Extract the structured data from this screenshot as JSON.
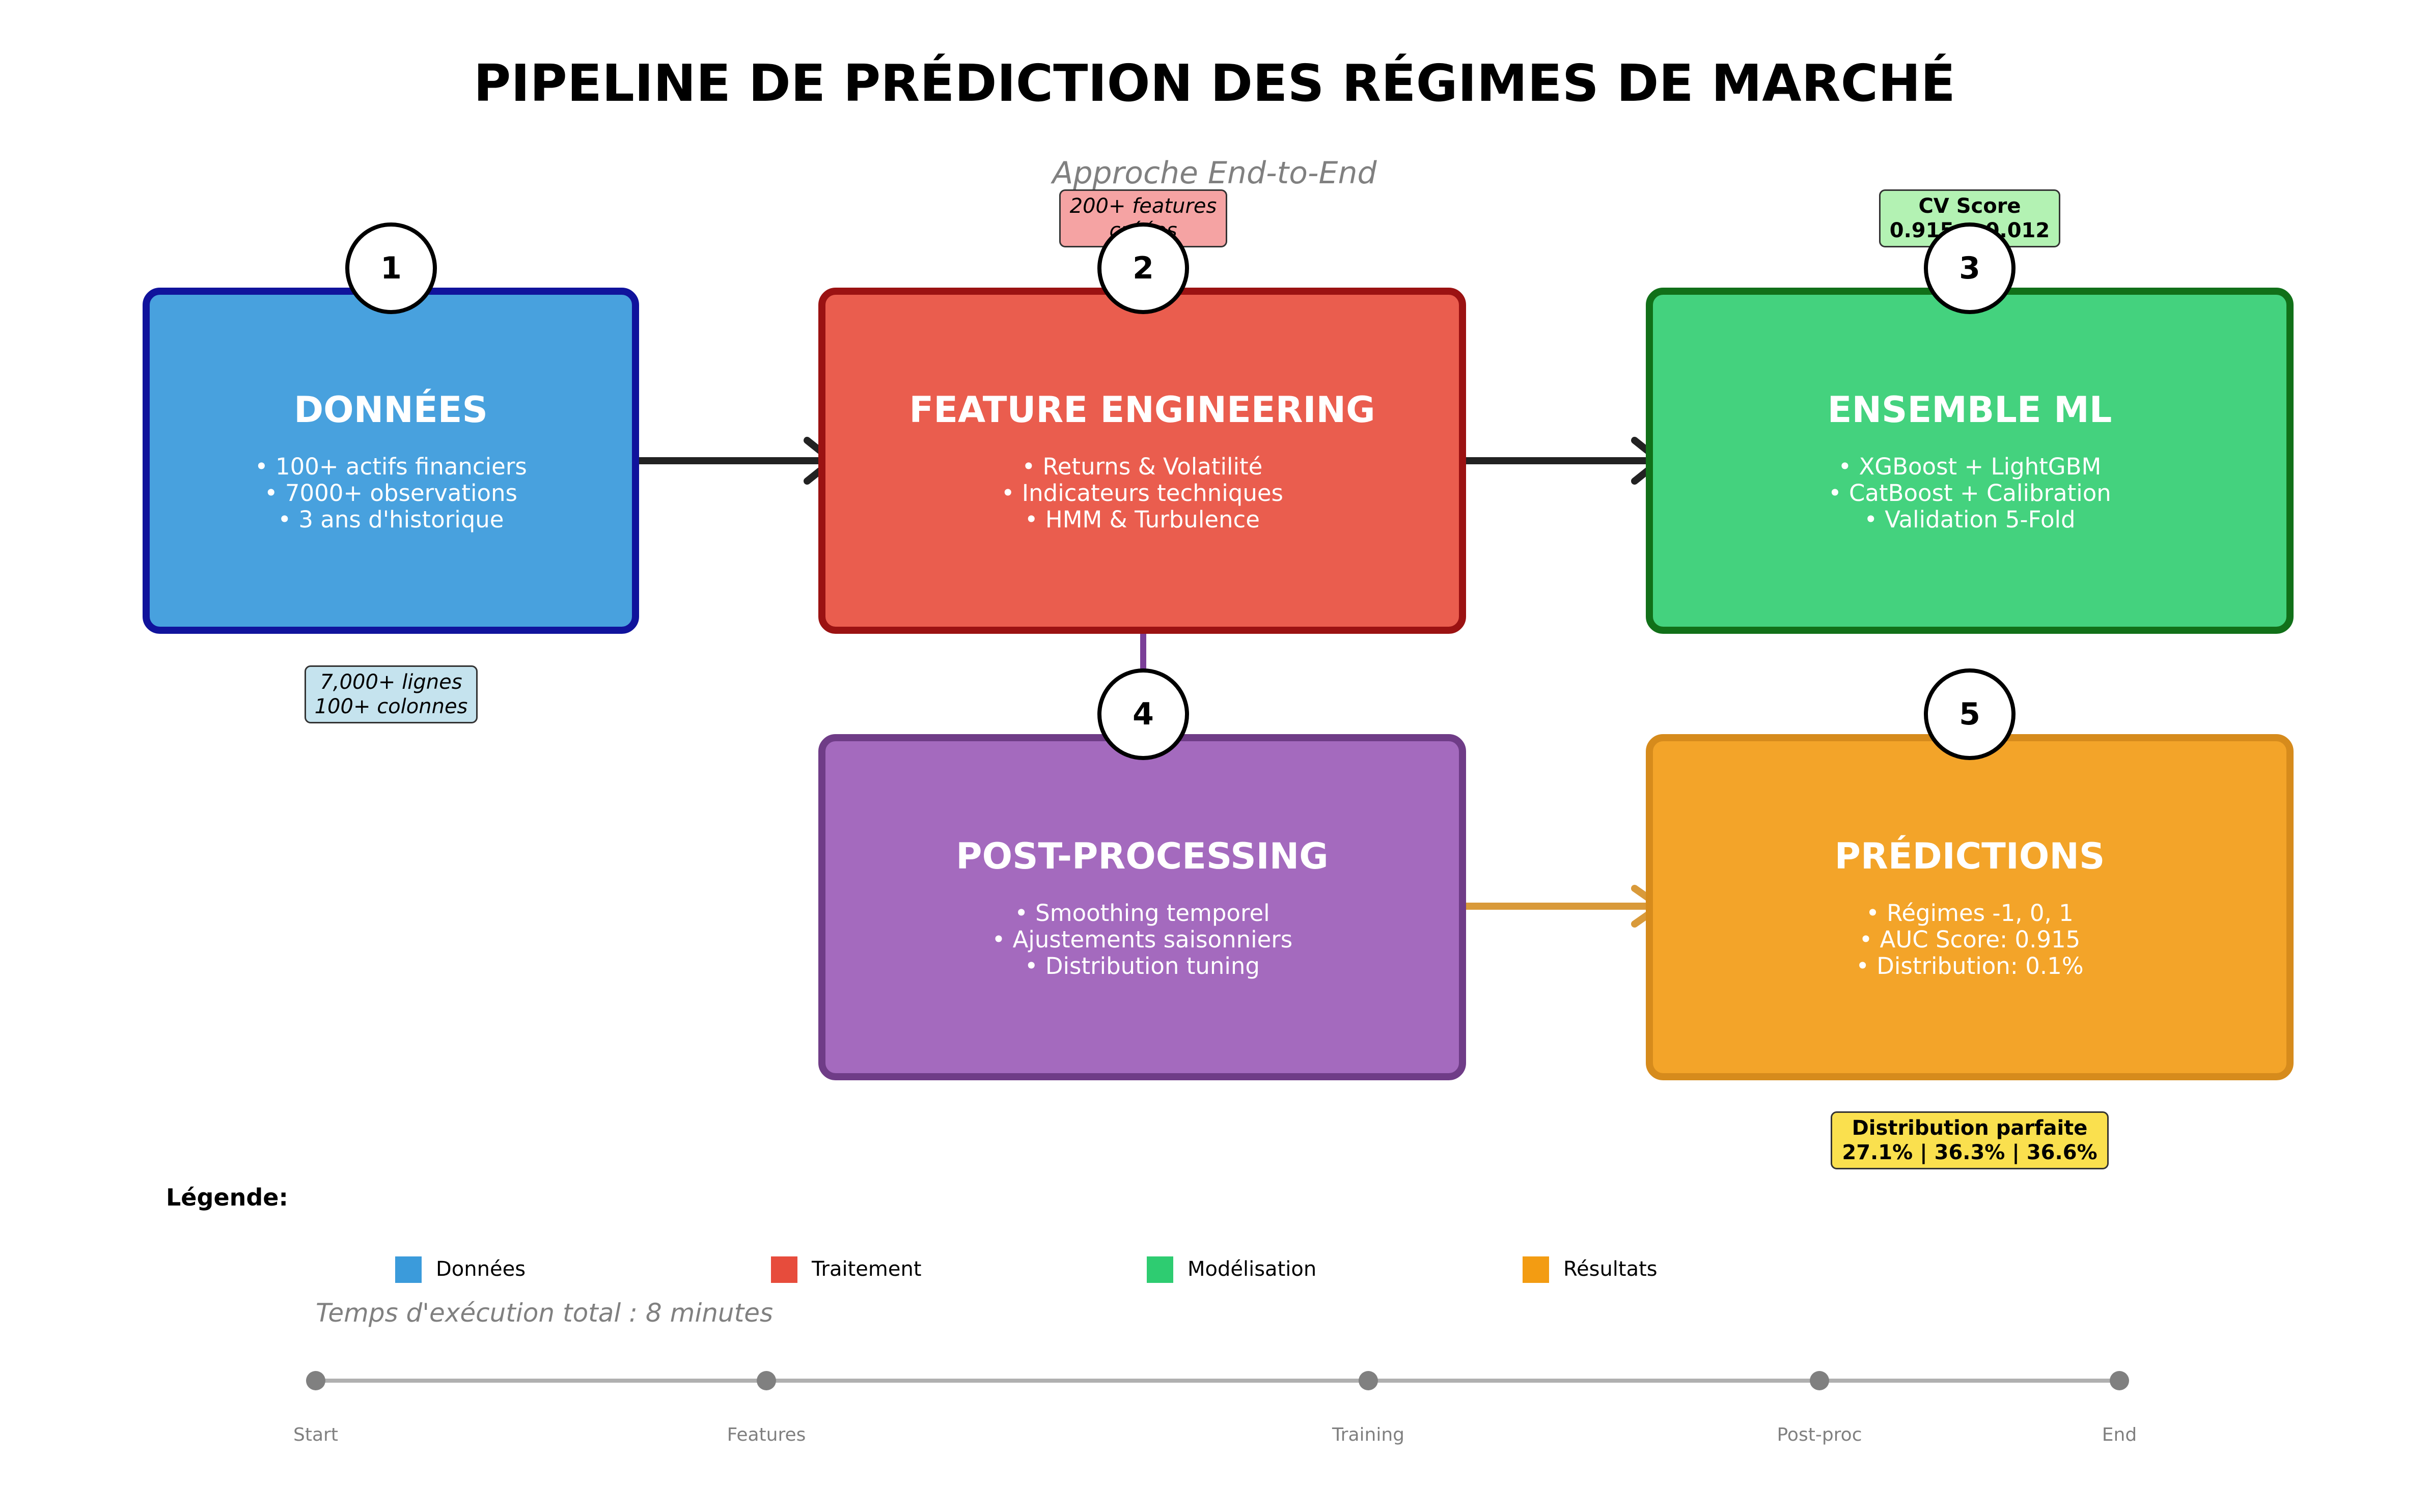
{
  "title": "PIPELINE DE PRÉDICTION DES RÉGIMES DE MARCHÉ",
  "subtitle": "Approche End-to-End",
  "boxes": [
    {
      "step": "1",
      "title": "DONNÉES",
      "lines": [
        "• 100+ actifs financiers",
        "• 7000+ observations",
        "• 3 ans d'historique"
      ],
      "fill": "#48A1DE",
      "border": "#10139C"
    },
    {
      "step": "2",
      "title": "FEATURE ENGINEERING",
      "lines": [
        "• Returns & Volatilité",
        "• Indicateurs techniques",
        "• HMM & Turbulence"
      ],
      "fill": "#EA5D4E",
      "border": "#9B1212"
    },
    {
      "step": "3",
      "title": "ENSEMBLE ML",
      "lines": [
        "• XGBoost + LightGBM",
        "• CatBoost + Calibration",
        "• Validation 5-Fold"
      ],
      "fill": "#44D27E",
      "border": "#117019"
    },
    {
      "step": "4",
      "title": "POST-PROCESSING",
      "lines": [
        "• Smoothing temporel",
        "• Ajustements saisonniers",
        "• Distribution tuning"
      ],
      "fill": "#A46ABE",
      "border": "#6F3C87"
    },
    {
      "step": "5",
      "title": "PRÉDICTIONS",
      "lines": [
        "• Régimes -1, 0, 1",
        "• AUC Score: 0.915",
        "• Distribution: 0.1%"
      ],
      "fill": "#F3A429",
      "border": "#D68B1C"
    }
  ],
  "notes": {
    "data_note": [
      "7,000+ lignes",
      "100+ colonnes"
    ],
    "features_note": [
      "200+ features",
      "créées"
    ],
    "cv_note": [
      "CV Score",
      "0.915 ± 0.012"
    ],
    "dist_note": [
      "Distribution parfaite",
      "27.1% | 36.3% | 36.6%"
    ]
  },
  "legend": {
    "title": "Légende:",
    "items": [
      {
        "label": "Données",
        "color": "#3B9BDB"
      },
      {
        "label": "Traitement",
        "color": "#E74C3C"
      },
      {
        "label": "Modélisation",
        "color": "#2ECC71"
      },
      {
        "label": "Résultats",
        "color": "#F39C12"
      }
    ]
  },
  "execution_time": "Temps d'exécution total : 8 minutes",
  "timeline": [
    "Start",
    "Features",
    "Training",
    "Post-proc",
    "End"
  ],
  "colors": {
    "arrow_main": "#222222",
    "arrow_post": "#D99A3A",
    "link_purple": "#7B3F98",
    "timeline": "#B0B0B0",
    "timeline_dot": "#808080"
  }
}
